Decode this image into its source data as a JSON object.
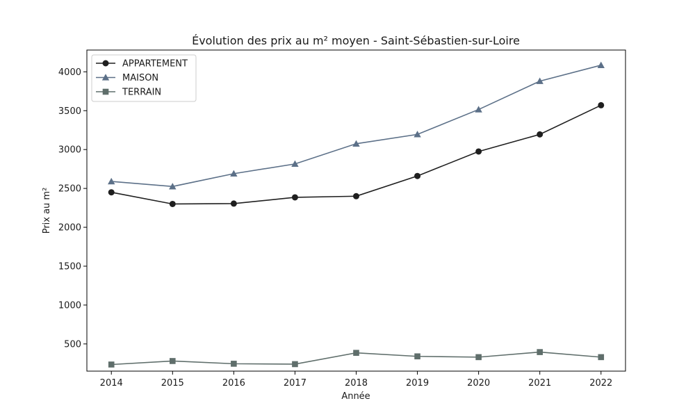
{
  "chart_data": {
    "type": "line",
    "title": "Évolution des prix au m² moyen - Saint-Sébastien-sur-Loire",
    "xlabel": "Année",
    "ylabel": "Prix au m²",
    "x": [
      2014,
      2015,
      2016,
      2017,
      2018,
      2019,
      2020,
      2021,
      2022
    ],
    "xlim": [
      2013.6,
      2022.4
    ],
    "ylim": [
      150,
      4280
    ],
    "yticks": [
      500,
      1000,
      1500,
      2000,
      2500,
      3000,
      3500,
      4000
    ],
    "grid": false,
    "legend_position": "top-left",
    "series": [
      {
        "name": "APPARTEMENT",
        "marker": "circle",
        "color": "#1f1f1f",
        "values": [
          2450,
          2300,
          2305,
          2385,
          2400,
          2660,
          2975,
          3195,
          3570
        ]
      },
      {
        "name": "MAISON",
        "marker": "triangle",
        "color": "#5c7088",
        "values": [
          2590,
          2525,
          2690,
          2815,
          3075,
          3195,
          3515,
          3880,
          4085
        ]
      },
      {
        "name": "TERRAIN",
        "marker": "square",
        "color": "#5f6e6b",
        "values": [
          235,
          280,
          245,
          240,
          385,
          340,
          330,
          395,
          330
        ]
      }
    ]
  }
}
